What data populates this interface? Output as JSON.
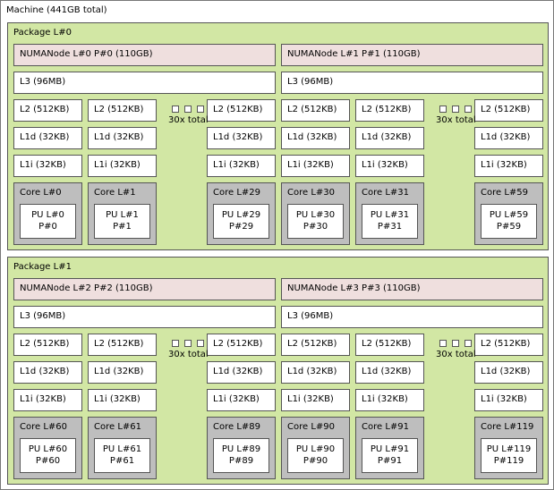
{
  "machine": {
    "label": "Machine (441GB total)"
  },
  "colors": {
    "package": "#d2e7a4",
    "numa": "#efdfde",
    "core": "#bebebe",
    "cache": "#ffffff"
  },
  "packages": [
    {
      "label": "Package L#0",
      "groups": [
        {
          "numa": "NUMANode L#0 P#0 (110GB)",
          "l3": "L3 (96MB)",
          "ellipsis": "30x total",
          "cores": [
            {
              "l2": "L2 (512KB)",
              "l1d": "L1d (32KB)",
              "l1i": "L1i (32KB)",
              "core": "Core L#0",
              "pu": "PU L#0",
              "p": "P#0"
            },
            {
              "l2": "L2 (512KB)",
              "l1d": "L1d (32KB)",
              "l1i": "L1i (32KB)",
              "core": "Core L#1",
              "pu": "PU L#1",
              "p": "P#1"
            },
            {
              "l2": "L2 (512KB)",
              "l1d": "L1d (32KB)",
              "l1i": "L1i (32KB)",
              "core": "Core L#29",
              "pu": "PU L#29",
              "p": "P#29"
            }
          ]
        },
        {
          "numa": "NUMANode L#1 P#1 (110GB)",
          "l3": "L3 (96MB)",
          "ellipsis": "30x total",
          "cores": [
            {
              "l2": "L2 (512KB)",
              "l1d": "L1d (32KB)",
              "l1i": "L1i (32KB)",
              "core": "Core L#30",
              "pu": "PU L#30",
              "p": "P#30"
            },
            {
              "l2": "L2 (512KB)",
              "l1d": "L1d (32KB)",
              "l1i": "L1i (32KB)",
              "core": "Core L#31",
              "pu": "PU L#31",
              "p": "P#31"
            },
            {
              "l2": "L2 (512KB)",
              "l1d": "L1d (32KB)",
              "l1i": "L1i (32KB)",
              "core": "Core L#59",
              "pu": "PU L#59",
              "p": "P#59"
            }
          ]
        }
      ]
    },
    {
      "label": "Package L#1",
      "groups": [
        {
          "numa": "NUMANode L#2 P#2 (110GB)",
          "l3": "L3 (96MB)",
          "ellipsis": "30x total",
          "cores": [
            {
              "l2": "L2 (512KB)",
              "l1d": "L1d (32KB)",
              "l1i": "L1i (32KB)",
              "core": "Core L#60",
              "pu": "PU L#60",
              "p": "P#60"
            },
            {
              "l2": "L2 (512KB)",
              "l1d": "L1d (32KB)",
              "l1i": "L1i (32KB)",
              "core": "Core L#61",
              "pu": "PU L#61",
              "p": "P#61"
            },
            {
              "l2": "L2 (512KB)",
              "l1d": "L1d (32KB)",
              "l1i": "L1i (32KB)",
              "core": "Core L#89",
              "pu": "PU L#89",
              "p": "P#89"
            }
          ]
        },
        {
          "numa": "NUMANode L#3 P#3 (110GB)",
          "l3": "L3 (96MB)",
          "ellipsis": "30x total",
          "cores": [
            {
              "l2": "L2 (512KB)",
              "l1d": "L1d (32KB)",
              "l1i": "L1i (32KB)",
              "core": "Core L#90",
              "pu": "PU L#90",
              "p": "P#90"
            },
            {
              "l2": "L2 (512KB)",
              "l1d": "L1d (32KB)",
              "l1i": "L1i (32KB)",
              "core": "Core L#91",
              "pu": "PU L#91",
              "p": "P#91"
            },
            {
              "l2": "L2 (512KB)",
              "l1d": "L1d (32KB)",
              "l1i": "L1i (32KB)",
              "core": "Core L#119",
              "pu": "PU L#119",
              "p": "P#119"
            }
          ]
        }
      ]
    }
  ]
}
